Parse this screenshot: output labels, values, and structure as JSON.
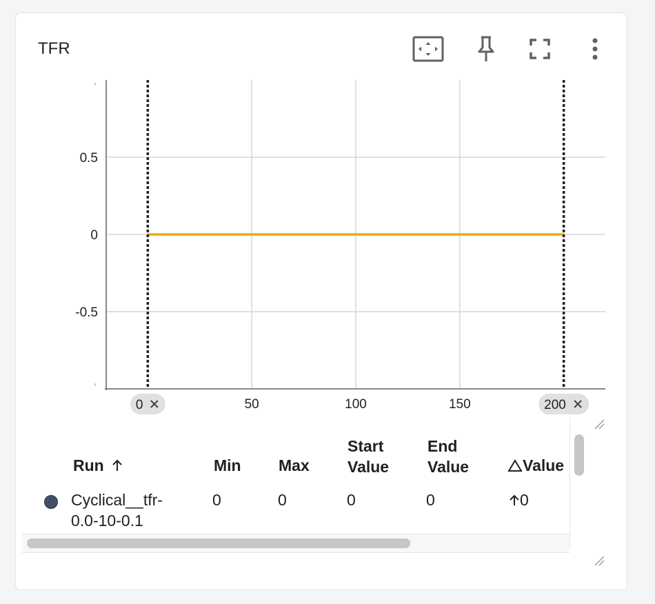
{
  "card": {
    "title": "TFR",
    "toolbar": [
      {
        "name": "fit-domain-button",
        "icon": "fit-to-domain-icon"
      },
      {
        "name": "pin-button",
        "icon": "pin-icon"
      },
      {
        "name": "fullscreen-button",
        "icon": "fullscreen-icon"
      },
      {
        "name": "more-options-button",
        "icon": "more-vert-icon"
      }
    ]
  },
  "chart_data": {
    "type": "line",
    "title": "TFR",
    "xlabel": "",
    "ylabel": "",
    "xlim": [
      -20,
      220
    ],
    "ylim": [
      -1,
      1
    ],
    "x_ticks": [
      50,
      100,
      150
    ],
    "y_ticks": [
      0.5,
      0,
      -0.5
    ],
    "grid": true,
    "series": [
      {
        "name": "Cyclical__tfr-0.0-10-0.1",
        "color": "#f5a800",
        "x": [
          0,
          200
        ],
        "y": [
          0,
          0
        ]
      }
    ],
    "step_markers": [
      {
        "value": 0,
        "label": "0"
      },
      {
        "value": 200,
        "label": "200"
      }
    ]
  },
  "table": {
    "columns": {
      "run": "Run",
      "min": "Min",
      "max": "Max",
      "start_line1": "Start",
      "start_line2": "Value",
      "end_line1": "End",
      "end_line2": "Value",
      "delta": "Value"
    },
    "rows": [
      {
        "run_line1": "Cyclical__tfr-",
        "run_line2": "0.0-10-0.1",
        "min": "0",
        "max": "0",
        "start": "0",
        "end": "0",
        "delta": "0",
        "color": "#425066"
      }
    ]
  },
  "colors": {
    "series": "#f5a800",
    "grid": "#d6d6d6",
    "marker_line": "#212121",
    "pill_bg": "#e0e0e0"
  }
}
